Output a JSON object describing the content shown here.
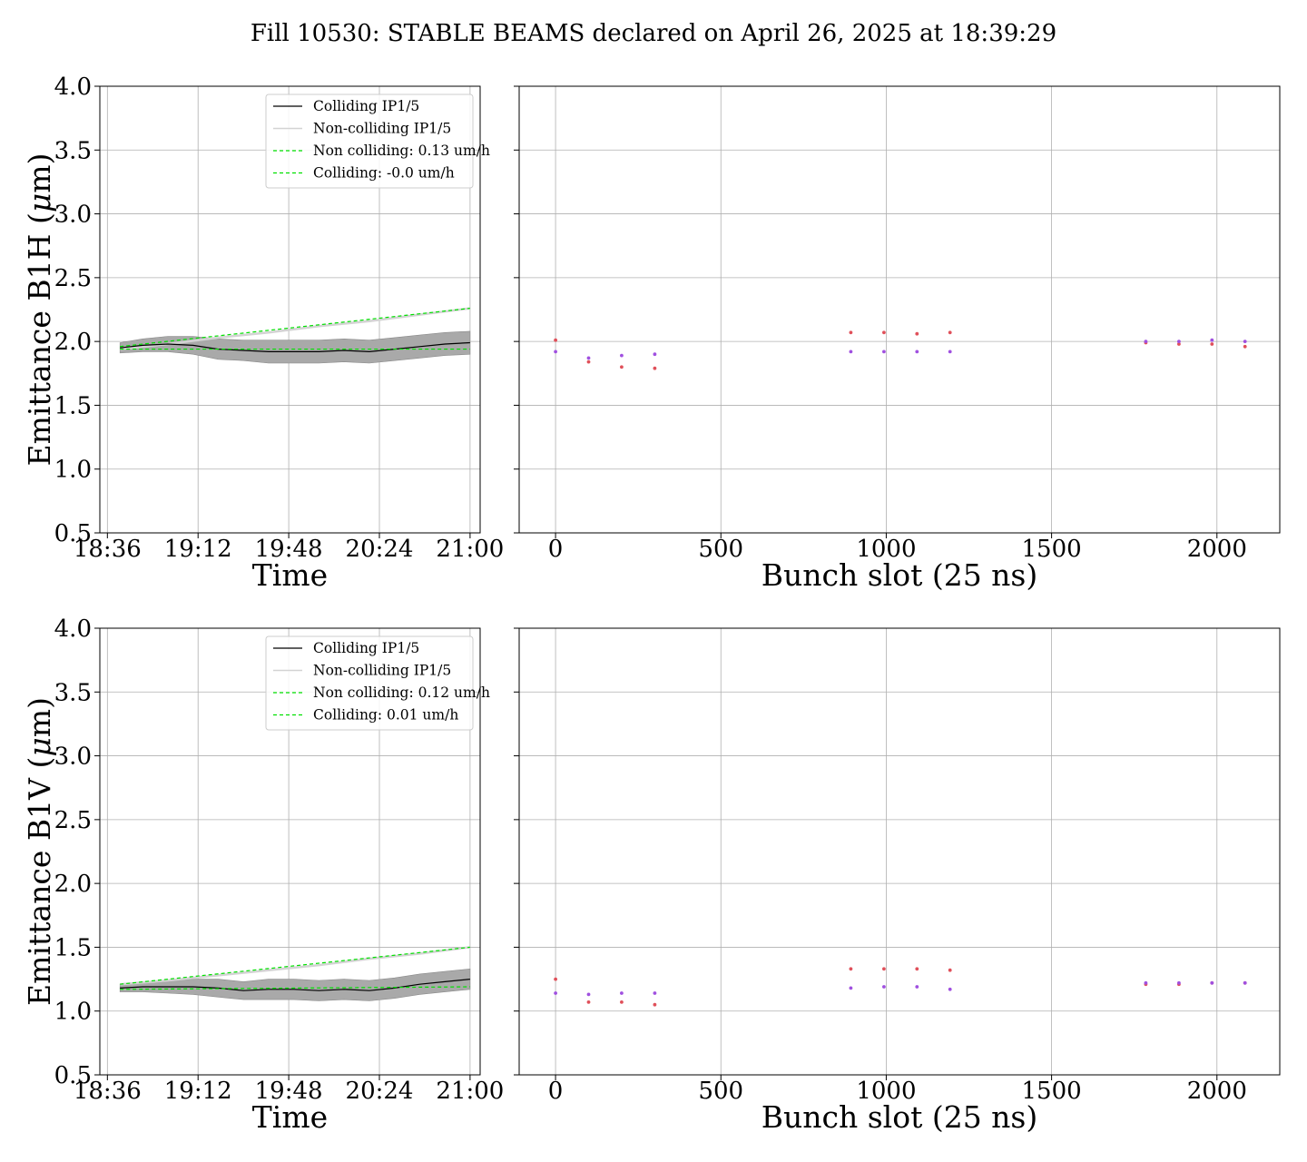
{
  "suptitle": "Fill 10530: STABLE BEAMS declared on April 26, 2025 at 18:39:29",
  "colors": {
    "colliding": "#000000",
    "noncolliding": "#d3d3d3",
    "fit": "#00e000",
    "band": "#a9a9a9",
    "grid": "#b0b0b0",
    "bunch_a": "#e0505a",
    "bunch_b": "#a050e0"
  },
  "chart_data": [
    {
      "type": "line",
      "panel": "top-left",
      "xlabel": "Time",
      "ylabel": "Emittance B1H ($\\mu$m)",
      "ylabel_main": "Emittance B1H (",
      "ylabel_mu": "μ",
      "ylabel_tail": "m)",
      "xlim": [
        "18:33",
        "21:04"
      ],
      "xticks": [
        "18:36",
        "19:12",
        "19:48",
        "20:24",
        "21:00"
      ],
      "ylim": [
        0.5,
        4.0
      ],
      "yticks": [
        "0.5",
        "1.0",
        "1.5",
        "2.0",
        "2.5",
        "3.0",
        "3.5",
        "4.0"
      ],
      "grid": true,
      "legend_position": "upper right",
      "legend": [
        "Colliding IP1/5",
        "Non-colliding IP1/5",
        "Non colliding: 0.13 um/h",
        "Colliding: -0.0 um/h"
      ],
      "series": [
        {
          "name": "Colliding IP1/5",
          "x": [
            "18:41",
            "18:50",
            "19:00",
            "19:10",
            "19:20",
            "19:30",
            "19:40",
            "19:50",
            "20:00",
            "20:10",
            "20:20",
            "20:30",
            "20:40",
            "20:50",
            "21:00"
          ],
          "values": [
            1.95,
            1.97,
            1.98,
            1.97,
            1.94,
            1.93,
            1.92,
            1.92,
            1.92,
            1.93,
            1.92,
            1.94,
            1.96,
            1.98,
            1.99
          ],
          "band_half_width": [
            0.04,
            0.05,
            0.06,
            0.07,
            0.08,
            0.08,
            0.09,
            0.09,
            0.09,
            0.09,
            0.09,
            0.09,
            0.09,
            0.09,
            0.09
          ]
        },
        {
          "name": "Non-colliding IP1/5",
          "x": [
            "18:41",
            "19:00",
            "19:20",
            "19:40",
            "20:00",
            "20:20",
            "20:40",
            "21:00"
          ],
          "values": [
            1.94,
            1.98,
            2.03,
            2.07,
            2.12,
            2.16,
            2.21,
            2.26
          ]
        },
        {
          "name": "Non colliding: 0.13 um/h",
          "x": [
            "18:41",
            "21:00"
          ],
          "values": [
            1.96,
            2.26
          ]
        },
        {
          "name": "Colliding: -0.0 um/h",
          "x": [
            "18:41",
            "21:00"
          ],
          "values": [
            1.94,
            1.94
          ]
        }
      ]
    },
    {
      "type": "scatter",
      "panel": "top-right",
      "xlabel": "Bunch slot (25 ns)",
      "xlim": [
        -110,
        2190
      ],
      "xticks": [
        "0",
        "500",
        "1000",
        "1500",
        "2000"
      ],
      "ylim": [
        0.5,
        4.0
      ],
      "grid": true,
      "series": [
        {
          "color": "bunch_a",
          "x": [
            0,
            100,
            200,
            300,
            893,
            993,
            1093,
            1193,
            1785,
            1885,
            1985,
            2085
          ],
          "values": [
            2.01,
            1.84,
            1.8,
            1.79,
            2.07,
            2.07,
            2.06,
            2.07,
            1.99,
            1.98,
            1.98,
            1.96
          ]
        },
        {
          "color": "bunch_b",
          "x": [
            0,
            100,
            200,
            300,
            893,
            993,
            1093,
            1193,
            1785,
            1885,
            1985,
            2085
          ],
          "values": [
            1.92,
            1.87,
            1.89,
            1.9,
            1.92,
            1.92,
            1.92,
            1.92,
            2.0,
            2.0,
            2.01,
            2.0
          ]
        }
      ]
    },
    {
      "type": "line",
      "panel": "bottom-left",
      "xlabel": "Time",
      "ylabel": "Emittance B1V ($\\mu$m)",
      "ylabel_main": "Emittance B1V (",
      "ylabel_mu": "μ",
      "ylabel_tail": "m)",
      "xlim": [
        "18:33",
        "21:04"
      ],
      "xticks": [
        "18:36",
        "19:12",
        "19:48",
        "20:24",
        "21:00"
      ],
      "ylim": [
        0.5,
        4.0
      ],
      "yticks": [
        "0.5",
        "1.0",
        "1.5",
        "2.0",
        "2.5",
        "3.0",
        "3.5",
        "4.0"
      ],
      "grid": true,
      "legend_position": "upper right",
      "legend": [
        "Colliding IP1/5",
        "Non-colliding IP1/5",
        "Non colliding: 0.12 um/h",
        "Colliding: 0.01 um/h"
      ],
      "series": [
        {
          "name": "Colliding IP1/5",
          "x": [
            "18:41",
            "18:50",
            "19:00",
            "19:10",
            "19:20",
            "19:30",
            "19:40",
            "19:50",
            "20:00",
            "20:10",
            "20:20",
            "20:30",
            "20:40",
            "20:50",
            "21:00"
          ],
          "values": [
            1.18,
            1.19,
            1.19,
            1.19,
            1.18,
            1.16,
            1.17,
            1.17,
            1.16,
            1.17,
            1.16,
            1.18,
            1.21,
            1.23,
            1.25
          ],
          "band_half_width": [
            0.03,
            0.04,
            0.05,
            0.06,
            0.07,
            0.07,
            0.08,
            0.08,
            0.08,
            0.08,
            0.08,
            0.08,
            0.08,
            0.08,
            0.08
          ]
        },
        {
          "name": "Non-colliding IP1/5",
          "x": [
            "18:41",
            "19:00",
            "19:20",
            "19:40",
            "20:00",
            "20:20",
            "20:40",
            "21:00"
          ],
          "values": [
            1.21,
            1.24,
            1.28,
            1.32,
            1.36,
            1.41,
            1.45,
            1.5
          ]
        },
        {
          "name": "Non colliding: 0.12 um/h",
          "x": [
            "18:41",
            "21:00"
          ],
          "values": [
            1.21,
            1.5
          ]
        },
        {
          "name": "Colliding: 0.01 um/h",
          "x": [
            "18:41",
            "21:00"
          ],
          "values": [
            1.17,
            1.19
          ]
        }
      ]
    },
    {
      "type": "scatter",
      "panel": "bottom-right",
      "xlabel": "Bunch slot (25 ns)",
      "xlim": [
        -110,
        2190
      ],
      "xticks": [
        "0",
        "500",
        "1000",
        "1500",
        "2000"
      ],
      "ylim": [
        0.5,
        4.0
      ],
      "grid": true,
      "series": [
        {
          "color": "bunch_a",
          "x": [
            0,
            100,
            200,
            300,
            893,
            993,
            1093,
            1193,
            1785,
            1885,
            1985,
            2085
          ],
          "values": [
            1.25,
            1.07,
            1.07,
            1.05,
            1.33,
            1.33,
            1.33,
            1.32,
            1.21,
            1.21,
            1.22,
            1.22
          ]
        },
        {
          "color": "bunch_b",
          "x": [
            0,
            100,
            200,
            300,
            893,
            993,
            1093,
            1193,
            1785,
            1885,
            1985,
            2085
          ],
          "values": [
            1.14,
            1.13,
            1.14,
            1.14,
            1.18,
            1.19,
            1.19,
            1.17,
            1.22,
            1.22,
            1.22,
            1.22
          ]
        }
      ]
    }
  ]
}
